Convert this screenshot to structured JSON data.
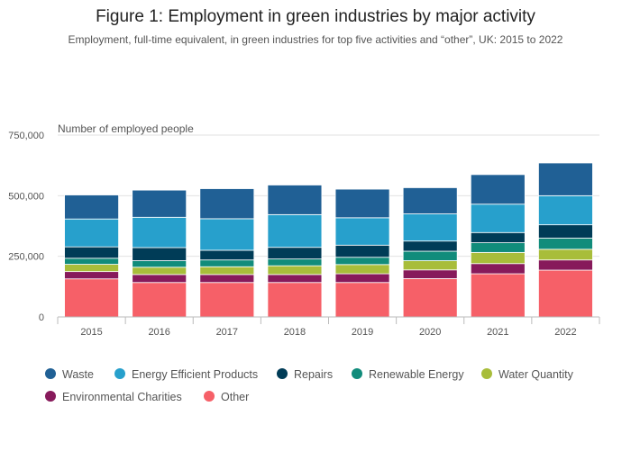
{
  "title": "Figure 1: Employment in green industries by major activity",
  "subtitle": "Employment, full-time equivalent, in green industries for top five activities and “other”, UK: 2015 to 2022",
  "chart_data": {
    "type": "bar",
    "stacked": true,
    "ylabel": "Number of employed people",
    "ylim": [
      0,
      750000
    ],
    "yticks": [
      0,
      250000,
      500000,
      750000
    ],
    "ytick_labels": [
      "0",
      "250,000",
      "500,000",
      "750,000"
    ],
    "categories": [
      "2015",
      "2016",
      "2017",
      "2018",
      "2019",
      "2020",
      "2021",
      "2022"
    ],
    "series": [
      {
        "name": "Other",
        "color": "#f66068",
        "values": [
          157000,
          142000,
          142000,
          142000,
          142000,
          158000,
          178000,
          193000
        ]
      },
      {
        "name": "Environmental Charities",
        "color": "#871a5b",
        "values": [
          30000,
          33000,
          33000,
          33000,
          36000,
          36000,
          42000,
          42000
        ]
      },
      {
        "name": "Water Quantity",
        "color": "#a8bd3a",
        "values": [
          30000,
          30000,
          32000,
          36000,
          38000,
          38000,
          46000,
          44000
        ]
      },
      {
        "name": "Renewable Energy",
        "color": "#118c7b",
        "values": [
          25000,
          27000,
          28000,
          28000,
          30000,
          39000,
          40000,
          46000
        ]
      },
      {
        "name": "Repairs",
        "color": "#003c57",
        "values": [
          47000,
          54000,
          40000,
          48000,
          50000,
          42000,
          42000,
          55000
        ]
      },
      {
        "name": "Energy Efficient Products",
        "color": "#27a0cc",
        "values": [
          115000,
          125000,
          130000,
          135000,
          113000,
          112000,
          117000,
          120000
        ]
      },
      {
        "name": "Waste",
        "color": "#206095",
        "values": [
          99000,
          112000,
          124000,
          122000,
          118000,
          108000,
          122000,
          135000
        ]
      }
    ],
    "legend": [
      {
        "name": "Waste",
        "color": "#206095"
      },
      {
        "name": "Energy Efficient Products",
        "color": "#27a0cc"
      },
      {
        "name": "Repairs",
        "color": "#003c57"
      },
      {
        "name": "Renewable Energy",
        "color": "#118c7b"
      },
      {
        "name": "Water Quantity",
        "color": "#a8bd3a"
      },
      {
        "name": "Environmental Charities",
        "color": "#871a5b"
      },
      {
        "name": "Other",
        "color": "#f66068"
      }
    ],
    "legend_position": "bottom",
    "grid": true
  }
}
